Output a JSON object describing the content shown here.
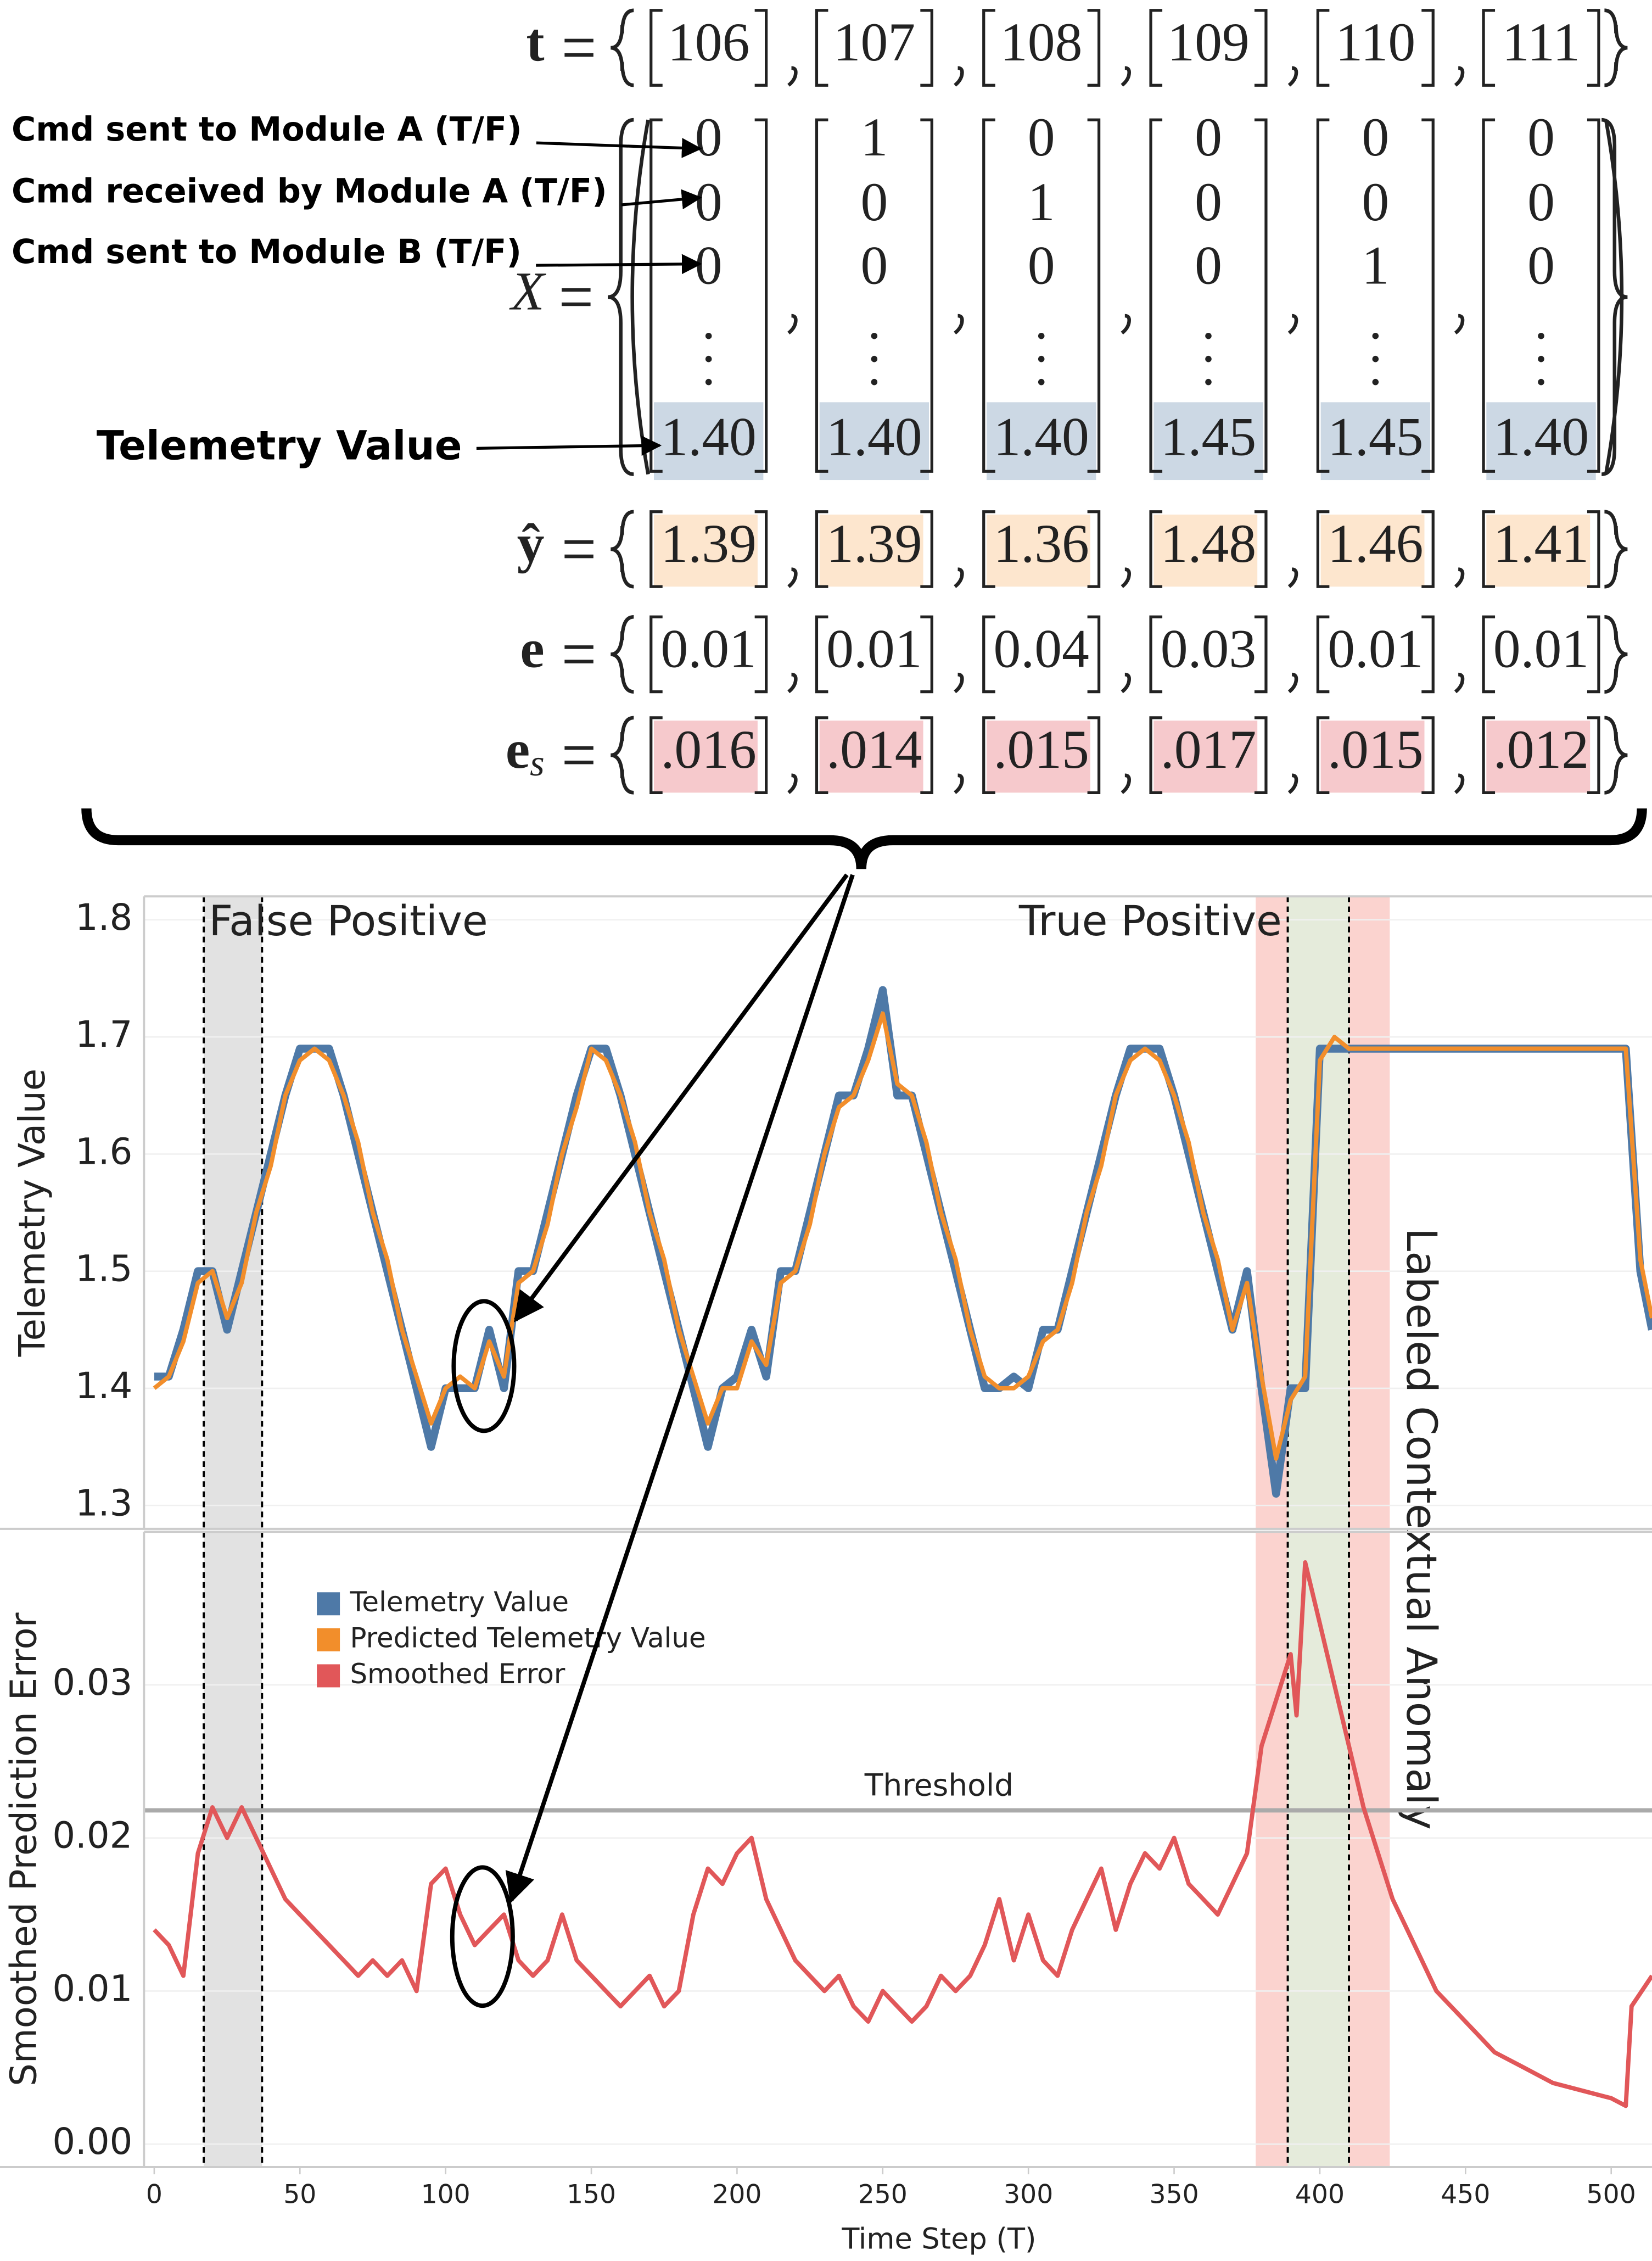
{
  "equations": {
    "t": {
      "symbol": "t",
      "values": [
        "106",
        "107",
        "108",
        "109",
        "110",
        "111"
      ]
    },
    "X": {
      "symbol": "X",
      "columns": [
        [
          "0",
          "0",
          "0",
          "1.40"
        ],
        [
          "1",
          "0",
          "0",
          "1.40"
        ],
        [
          "0",
          "1",
          "0",
          "1.40"
        ],
        [
          "0",
          "0",
          "0",
          "1.45"
        ],
        [
          "0",
          "0",
          "1",
          "1.45"
        ],
        [
          "0",
          "0",
          "0",
          "1.40"
        ]
      ],
      "row_labels": [
        "Cmd sent to Module A (T/F)",
        "Cmd received by Module A (T/F)",
        "Cmd sent to Module B (T/F)",
        "Telemetry Value"
      ]
    },
    "yhat": {
      "symbol": "ŷ",
      "values": [
        "1.39",
        "1.39",
        "1.36",
        "1.48",
        "1.46",
        "1.41"
      ]
    },
    "e": {
      "symbol": "e",
      "values": [
        "0.01",
        "0.01",
        "0.04",
        "0.03",
        "0.01",
        "0.01"
      ]
    },
    "e_s": {
      "symbol": "e",
      "subscript": "s",
      "values": [
        ".016",
        ".014",
        ".015",
        ".017",
        ".015",
        ".012"
      ]
    }
  },
  "chart_data": [
    {
      "type": "line",
      "ylabel": "Telemetry Value",
      "annotations": [
        "False Positive",
        "True Positive",
        "Labeled Contextual Anomaly"
      ],
      "x": [
        0,
        5,
        10,
        15,
        20,
        25,
        30,
        35,
        40,
        45,
        50,
        55,
        60,
        65,
        70,
        75,
        80,
        85,
        90,
        95,
        100,
        105,
        110,
        115,
        120,
        125,
        130,
        135,
        140,
        145,
        150,
        155,
        160,
        165,
        170,
        175,
        180,
        185,
        190,
        195,
        200,
        205,
        210,
        215,
        220,
        225,
        230,
        235,
        240,
        245,
        250,
        255,
        260,
        265,
        270,
        275,
        280,
        285,
        290,
        295,
        300,
        305,
        310,
        315,
        320,
        325,
        330,
        335,
        340,
        345,
        350,
        355,
        360,
        365,
        370,
        375,
        380,
        385,
        390,
        395,
        400,
        405,
        410,
        415,
        420,
        425,
        430,
        435,
        440,
        445,
        450,
        455,
        460,
        465,
        470,
        475,
        480,
        485,
        490,
        495,
        500,
        505,
        510,
        514
      ],
      "series": [
        {
          "name": "Telemetry Value",
          "color": "#4e79a7",
          "values": [
            1.41,
            1.41,
            1.45,
            1.5,
            1.5,
            1.45,
            1.5,
            1.55,
            1.6,
            1.65,
            1.69,
            1.69,
            1.69,
            1.65,
            1.6,
            1.55,
            1.5,
            1.45,
            1.4,
            1.35,
            1.4,
            1.4,
            1.4,
            1.45,
            1.4,
            1.5,
            1.5,
            1.55,
            1.6,
            1.65,
            1.69,
            1.69,
            1.65,
            1.6,
            1.55,
            1.5,
            1.45,
            1.4,
            1.35,
            1.4,
            1.41,
            1.45,
            1.41,
            1.5,
            1.5,
            1.55,
            1.6,
            1.65,
            1.65,
            1.69,
            1.74,
            1.65,
            1.65,
            1.6,
            1.55,
            1.5,
            1.45,
            1.4,
            1.4,
            1.41,
            1.4,
            1.45,
            1.45,
            1.5,
            1.55,
            1.6,
            1.65,
            1.69,
            1.69,
            1.69,
            1.65,
            1.6,
            1.55,
            1.5,
            1.45,
            1.5,
            1.4,
            1.31,
            1.4,
            1.4,
            1.69,
            1.69,
            1.69,
            1.69,
            1.69,
            1.69,
            1.69,
            1.69,
            1.69,
            1.69,
            1.69,
            1.69,
            1.69,
            1.69,
            1.69,
            1.69,
            1.69,
            1.69,
            1.69,
            1.69,
            1.69,
            1.69,
            1.5,
            1.45
          ]
        },
        {
          "name": "Predicted Telemetry Value",
          "color": "#f28e2b",
          "values": [
            1.4,
            1.41,
            1.44,
            1.49,
            1.5,
            1.46,
            1.49,
            1.55,
            1.59,
            1.65,
            1.68,
            1.69,
            1.68,
            1.65,
            1.61,
            1.55,
            1.51,
            1.45,
            1.41,
            1.37,
            1.4,
            1.41,
            1.4,
            1.44,
            1.41,
            1.49,
            1.5,
            1.54,
            1.6,
            1.64,
            1.69,
            1.68,
            1.65,
            1.61,
            1.55,
            1.51,
            1.45,
            1.41,
            1.37,
            1.4,
            1.4,
            1.44,
            1.42,
            1.49,
            1.5,
            1.54,
            1.6,
            1.64,
            1.65,
            1.68,
            1.72,
            1.66,
            1.65,
            1.61,
            1.55,
            1.51,
            1.45,
            1.41,
            1.4,
            1.4,
            1.41,
            1.44,
            1.45,
            1.49,
            1.55,
            1.59,
            1.65,
            1.68,
            1.69,
            1.68,
            1.65,
            1.61,
            1.55,
            1.51,
            1.45,
            1.49,
            1.41,
            1.34,
            1.39,
            1.41,
            1.68,
            1.7,
            1.69,
            1.69,
            1.69,
            1.69,
            1.69,
            1.69,
            1.69,
            1.69,
            1.69,
            1.69,
            1.69,
            1.69,
            1.69,
            1.69,
            1.69,
            1.69,
            1.69,
            1.69,
            1.69,
            1.69,
            1.51,
            1.46
          ]
        }
      ],
      "xlim": [
        -3.5,
        514
      ],
      "ylim": [
        1.28,
        1.82
      ],
      "yticks": [
        1.3,
        1.4,
        1.5,
        1.6,
        1.7,
        1.8
      ],
      "highlight_regions": [
        {
          "x": [
            17,
            37
          ],
          "color": "#e2e2e2"
        },
        {
          "x": [
            378,
            389
          ],
          "color": "#fbd3cf"
        },
        {
          "x": [
            389,
            410
          ],
          "color": "#e5ebdb"
        },
        {
          "x": [
            410,
            424
          ],
          "color": "#fbd3cf"
        }
      ],
      "marker_lines": [
        17,
        37,
        389,
        410
      ]
    },
    {
      "type": "line",
      "ylabel": "Smoothed Prediction Error",
      "xlabel": "Time Step (T)",
      "threshold": {
        "value": 0.0218,
        "label": "Threshold"
      },
      "x": [
        0,
        5,
        10,
        15,
        20,
        25,
        30,
        35,
        40,
        45,
        50,
        55,
        60,
        65,
        70,
        75,
        80,
        85,
        90,
        95,
        100,
        105,
        110,
        115,
        120,
        125,
        130,
        135,
        140,
        145,
        150,
        155,
        160,
        165,
        170,
        175,
        180,
        185,
        190,
        195,
        200,
        205,
        210,
        215,
        220,
        225,
        230,
        235,
        240,
        245,
        250,
        255,
        260,
        265,
        270,
        275,
        280,
        285,
        290,
        295,
        300,
        305,
        310,
        315,
        320,
        325,
        330,
        335,
        340,
        345,
        350,
        355,
        360,
        365,
        370,
        375,
        380,
        385,
        390,
        392,
        395,
        400,
        405,
        410,
        415,
        420,
        425,
        430,
        435,
        440,
        450,
        460,
        470,
        480,
        490,
        500,
        505,
        507,
        514
      ],
      "series": [
        {
          "name": "Smoothed Error",
          "color": "#e15759",
          "values": [
            0.014,
            0.013,
            0.011,
            0.019,
            0.022,
            0.02,
            0.022,
            0.02,
            0.018,
            0.016,
            0.015,
            0.014,
            0.013,
            0.012,
            0.011,
            0.012,
            0.011,
            0.012,
            0.01,
            0.017,
            0.018,
            0.015,
            0.013,
            0.014,
            0.015,
            0.012,
            0.011,
            0.012,
            0.015,
            0.012,
            0.011,
            0.01,
            0.009,
            0.01,
            0.011,
            0.009,
            0.01,
            0.015,
            0.018,
            0.017,
            0.019,
            0.02,
            0.016,
            0.014,
            0.012,
            0.011,
            0.01,
            0.011,
            0.009,
            0.008,
            0.01,
            0.009,
            0.008,
            0.009,
            0.011,
            0.01,
            0.011,
            0.013,
            0.016,
            0.012,
            0.015,
            0.012,
            0.011,
            0.014,
            0.016,
            0.018,
            0.014,
            0.017,
            0.019,
            0.018,
            0.02,
            0.017,
            0.016,
            0.015,
            0.017,
            0.019,
            0.026,
            0.029,
            0.032,
            0.028,
            0.038,
            0.034,
            0.03,
            0.026,
            0.022,
            0.019,
            0.016,
            0.014,
            0.012,
            0.01,
            0.008,
            0.006,
            0.005,
            0.004,
            0.0035,
            0.003,
            0.0025,
            0.009,
            0.011
          ]
        }
      ],
      "xlim": [
        -3.5,
        514
      ],
      "ylim": [
        -0.0015,
        0.04
      ],
      "yticks": [
        {
          "value": 0,
          "label": "0.00"
        },
        0.01,
        0.02,
        0.03
      ],
      "xticks": [
        0,
        50,
        100,
        150,
        200,
        250,
        300,
        350,
        400,
        450,
        500
      ],
      "highlight_regions": [
        {
          "x": [
            17,
            37
          ],
          "color": "#e2e2e2"
        },
        {
          "x": [
            378,
            389
          ],
          "color": "#fbd3cf"
        },
        {
          "x": [
            389,
            410
          ],
          "color": "#e5ebdb"
        },
        {
          "x": [
            410,
            424
          ],
          "color": "#fbd3cf"
        }
      ],
      "marker_lines": [
        17,
        37,
        389,
        410
      ]
    }
  ]
}
